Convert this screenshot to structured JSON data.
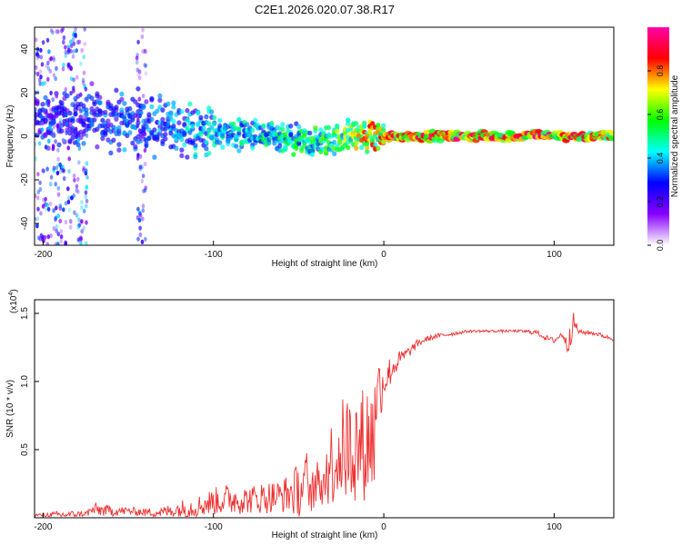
{
  "title": "C2E1.2026.020.07.38.R17",
  "chart_data": [
    {
      "type": "heatmap",
      "title": "C2E1.2026.020.07.38.R17",
      "xlabel": "Height of straight line (km)",
      "ylabel": "Frequency (Hz)",
      "xlim": [
        -205,
        135
      ],
      "ylim": [
        -50,
        50
      ],
      "x_ticks": [
        -200,
        -100,
        0,
        100
      ],
      "x_tick_labels": [
        "-200",
        "-100",
        "0",
        "100"
      ],
      "y_ticks": [
        -40,
        -20,
        0,
        20,
        40
      ],
      "y_tick_labels": [
        "-40",
        "-20",
        "0",
        "20",
        "40"
      ],
      "colorbar": {
        "label": "Normalized spectral amplitude",
        "range": [
          0,
          1
        ],
        "ticks": [
          0.0,
          0.2,
          0.4,
          0.6,
          0.8
        ],
        "tick_labels": [
          "0.0",
          "0.2",
          "0.4",
          "0.6",
          "0.8"
        ],
        "colormap": [
          "#ffffff",
          "#8800ff",
          "#0000ff",
          "#00ffff",
          "#00ff00",
          "#ffff00",
          "#ff0000",
          "#ff00aa"
        ]
      },
      "ridge": {
        "x": [
          -180,
          -160,
          -140,
          -120,
          -100,
          -80,
          -60,
          -40,
          -30,
          -20,
          -10,
          0,
          20,
          40,
          60,
          80,
          90,
          100,
          120,
          135
        ],
        "frequency": [
          8,
          8,
          6,
          3,
          2,
          1,
          -2,
          -3,
          -2,
          1,
          0,
          0,
          0,
          0,
          0,
          0,
          1,
          0,
          0,
          0
        ],
        "amplitude": [
          0.3,
          0.35,
          0.35,
          0.4,
          0.45,
          0.45,
          0.5,
          0.55,
          0.6,
          0.65,
          0.75,
          0.8,
          0.85,
          0.85,
          0.85,
          0.85,
          0.9,
          0.85,
          0.8,
          0.75
        ]
      },
      "noise_bands": [
        {
          "x_from": -205,
          "x_to": -175,
          "amplitude": 0.25
        },
        {
          "x_from": -145,
          "x_to": -140,
          "amplitude": 0.2
        }
      ]
    },
    {
      "type": "line",
      "xlabel": "Height of straight line (km)",
      "ylabel": "SNR (10 * v/v)",
      "y_multiplier": "(x10",
      "y_multiplier_exponent": "4",
      "y_multiplier_close": ")",
      "xlim": [
        -205,
        135
      ],
      "ylim": [
        0,
        1.6
      ],
      "x_ticks": [
        -200,
        -100,
        0,
        100
      ],
      "x_tick_labels": [
        "-200",
        "-100",
        "0",
        "100"
      ],
      "y_ticks": [
        0.5,
        1.0,
        1.5
      ],
      "y_tick_labels": [
        "0.5",
        "1.0",
        "1.5"
      ],
      "color": "#ee3030",
      "series": [
        {
          "x": [
            -205,
            -190,
            -175,
            -170,
            -160,
            -150,
            -140,
            -130,
            -120,
            -110,
            -100,
            -90,
            -80,
            -70,
            -60,
            -50,
            -40,
            -35,
            -30,
            -25,
            -20,
            -15,
            -10,
            -5,
            0,
            5,
            10,
            15,
            20,
            25,
            30,
            40,
            50,
            60,
            70,
            80,
            90,
            95,
            100,
            105,
            108,
            110,
            112,
            115,
            120,
            125,
            130,
            135
          ],
          "values": [
            0.02,
            0.02,
            0.03,
            0.06,
            0.05,
            0.05,
            0.04,
            0.04,
            0.06,
            0.08,
            0.12,
            0.14,
            0.13,
            0.15,
            0.16,
            0.2,
            0.3,
            0.45,
            0.6,
            0.7,
            0.75,
            0.75,
            0.8,
            0.9,
            1.0,
            1.1,
            1.17,
            1.22,
            1.28,
            1.31,
            1.33,
            1.35,
            1.37,
            1.37,
            1.37,
            1.37,
            1.36,
            1.32,
            1.3,
            1.35,
            1.25,
            1.43,
            1.42,
            1.36,
            1.36,
            1.35,
            1.33,
            1.31
          ],
          "noise": [
            0.01,
            0.03,
            0.02,
            0.05,
            0.04,
            0.03,
            0.03,
            0.04,
            0.07,
            0.08,
            0.1,
            0.12,
            0.1,
            0.12,
            0.12,
            0.2,
            0.35,
            0.45,
            0.6,
            0.75,
            0.8,
            0.8,
            0.7,
            0.35,
            0.15,
            0.1,
            0.06,
            0.04,
            0.03,
            0.02,
            0.02,
            0.015,
            0.01,
            0.01,
            0.01,
            0.01,
            0.02,
            0.02,
            0.02,
            0.03,
            0.05,
            0.15,
            0.05,
            0.02,
            0.015,
            0.015,
            0.015,
            0.015
          ]
        }
      ]
    }
  ]
}
